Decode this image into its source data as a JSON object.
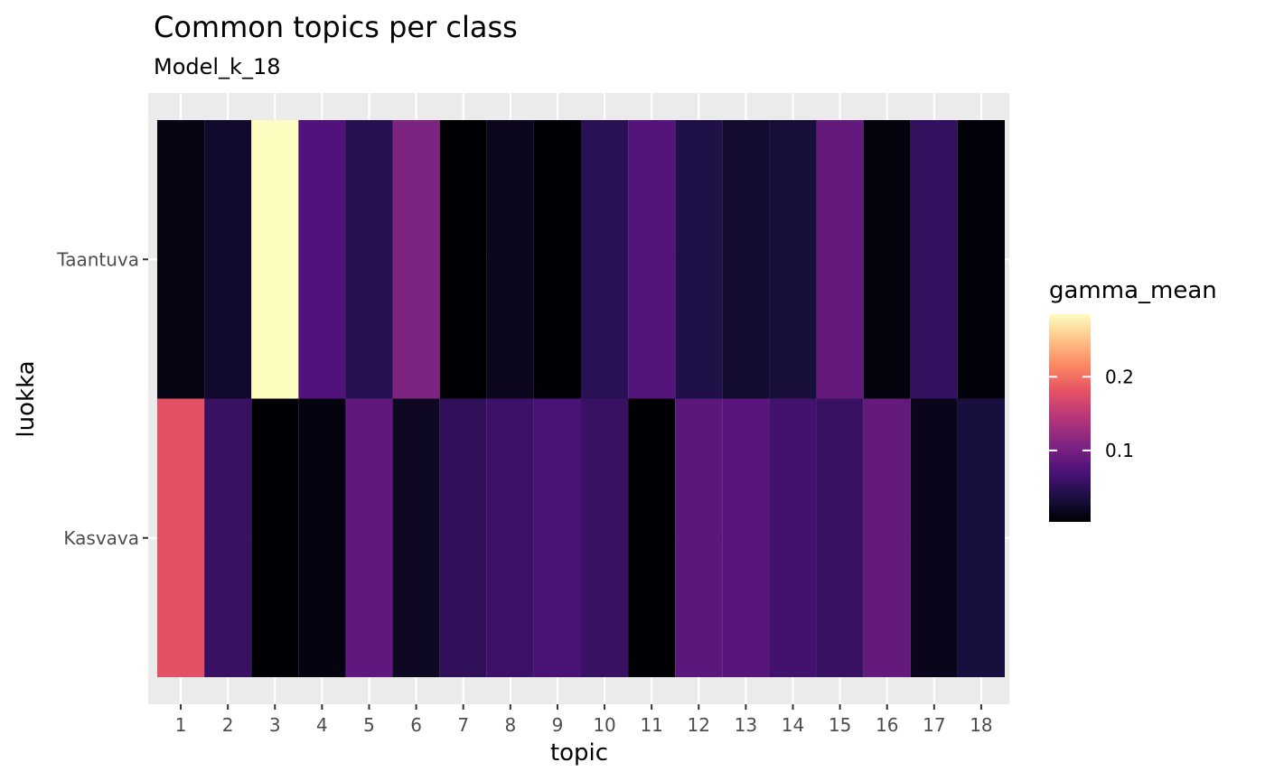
{
  "chart_data": {
    "type": "heatmap",
    "title": "Common topics per class",
    "subtitle": "Model_k_18",
    "xlabel": "topic",
    "ylabel": "luokka",
    "x": [
      "1",
      "2",
      "3",
      "4",
      "5",
      "6",
      "7",
      "8",
      "9",
      "10",
      "11",
      "12",
      "13",
      "14",
      "15",
      "16",
      "17",
      "18"
    ],
    "y": [
      "Kasvava",
      "Taantuva"
    ],
    "values": {
      "Taantuva": [
        0.012,
        0.025,
        0.285,
        0.075,
        0.045,
        0.105,
        0.003,
        0.018,
        0.004,
        0.048,
        0.078,
        0.04,
        0.028,
        0.033,
        0.088,
        0.008,
        0.055,
        0.006
      ],
      "Kasvava": [
        0.18,
        0.058,
        0.003,
        0.01,
        0.085,
        0.02,
        0.052,
        0.062,
        0.07,
        0.058,
        0.003,
        0.082,
        0.08,
        0.065,
        0.058,
        0.088,
        0.015,
        0.035
      ]
    },
    "legend": {
      "title": "gamma_mean",
      "range": [
        0.003,
        0.285
      ],
      "ticks": [
        0.1,
        0.2
      ],
      "tick_labels": [
        "0.1",
        "0.2"
      ],
      "colormap": "magma",
      "placement": "right"
    },
    "grid": true,
    "panel_background": "#ebebeb",
    "grid_color": "#ffffff"
  }
}
